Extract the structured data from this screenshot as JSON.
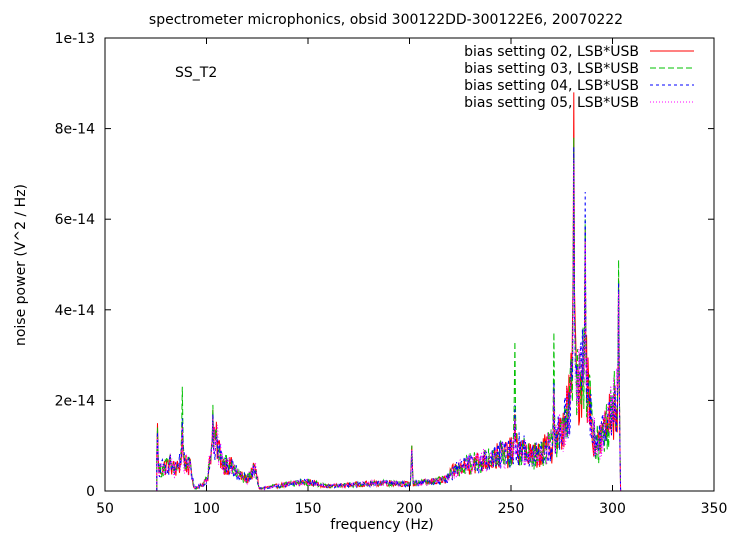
{
  "chart_data": {
    "type": "line",
    "title": "spectrometer microphonics, obsid 300122DD-300122E6, 20070222",
    "annotation": "SS_T2",
    "xlabel": "frequency (Hz)",
    "ylabel": "noise power (V^2 / Hz)",
    "xlim": [
      50,
      350
    ],
    "ylim": [
      0,
      1e-13
    ],
    "xticks": [
      50,
      100,
      150,
      200,
      250,
      300,
      350
    ],
    "yticks": [
      0,
      2e-14,
      4e-14,
      6e-14,
      8e-14,
      1e-13
    ],
    "xtick_labels": [
      "50",
      "100",
      "150",
      "200",
      "250",
      "300",
      "350"
    ],
    "ytick_labels": [
      "0",
      "2e-14",
      "4e-14",
      "6e-14",
      "8e-14",
      "1e-13"
    ],
    "grid": false,
    "legend_position": "top-right",
    "x_range": [
      75.5,
      304
    ],
    "series": [
      {
        "name": "bias setting 02, LSB*USB",
        "color": "#ff0000",
        "dash": "solid",
        "peaks": [
          [
            75.7,
            1.5e-14
          ],
          [
            88,
            1.5e-14
          ],
          [
            103,
            1.8e-14
          ],
          [
            201,
            1e-14
          ],
          [
            252,
            1.7e-14
          ],
          [
            271,
            2.3e-14
          ],
          [
            281,
            8.8e-14
          ],
          [
            286.5,
            5.8e-14
          ],
          [
            303,
            4.7e-14
          ]
        ]
      },
      {
        "name": "bias setting 03, LSB*USB",
        "color": "#00c000",
        "dash": "6,3",
        "peaks": [
          [
            75.7,
            1.4e-14
          ],
          [
            88,
            2.3e-14
          ],
          [
            103,
            1.9e-14
          ],
          [
            201,
            1e-14
          ],
          [
            252,
            3.3e-14
          ],
          [
            271,
            3.5e-14
          ],
          [
            281,
            7.8e-14
          ],
          [
            286.5,
            6e-14
          ],
          [
            303,
            5.1e-14
          ]
        ]
      },
      {
        "name": "bias setting 04, LSB*USB",
        "color": "#0000ff",
        "dash": "3,3",
        "peaks": [
          [
            75.7,
            1.3e-14
          ],
          [
            88,
            1.6e-14
          ],
          [
            103,
            1.7e-14
          ],
          [
            201,
            9e-15
          ],
          [
            252,
            1.9e-14
          ],
          [
            271,
            2.4e-14
          ],
          [
            281,
            7.6e-14
          ],
          [
            286.5,
            6.6e-14
          ],
          [
            303,
            4.6e-14
          ]
        ]
      },
      {
        "name": "bias setting 05, LSB*USB",
        "color": "#ff00ff",
        "dash": "1,2",
        "peaks": [
          [
            75.7,
            1.2e-14
          ],
          [
            88,
            1.4e-14
          ],
          [
            103,
            1.6e-14
          ],
          [
            201,
            9e-15
          ],
          [
            252,
            1.6e-14
          ],
          [
            271,
            2.2e-14
          ],
          [
            281,
            7.3e-14
          ],
          [
            286.5,
            5.5e-14
          ],
          [
            303,
            4.4e-14
          ]
        ]
      }
    ]
  }
}
